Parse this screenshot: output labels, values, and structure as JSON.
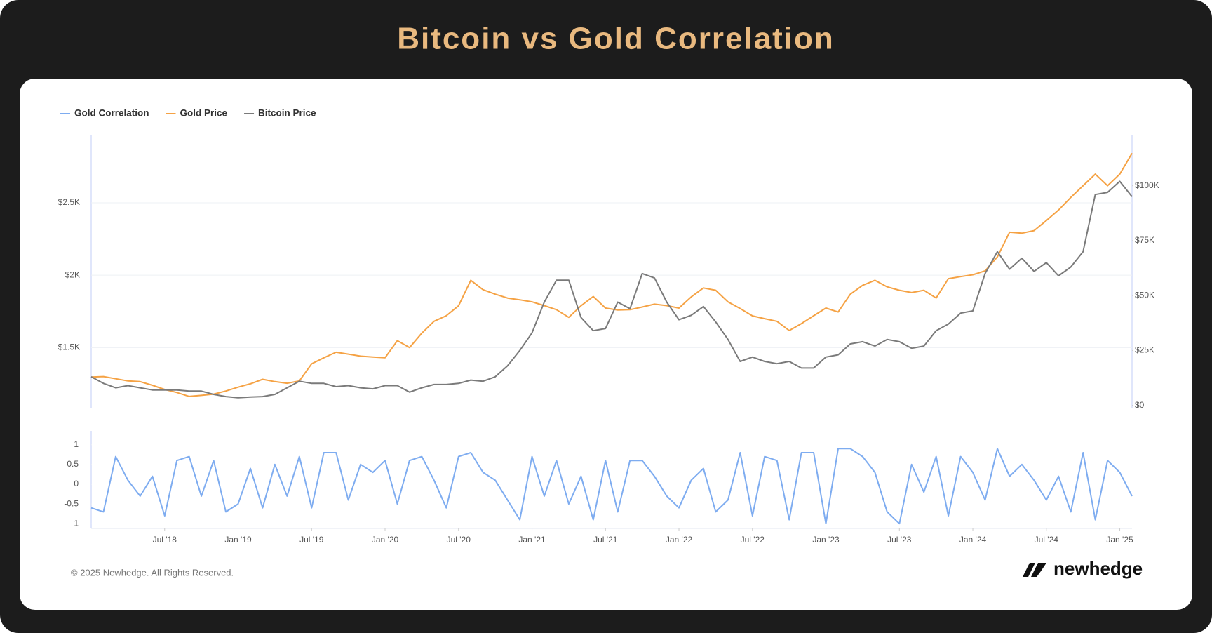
{
  "title": "Bitcoin vs Gold Correlation",
  "footer": {
    "copyright": "© 2025 Newhedge. All Rights Reserved.",
    "brand": "newhedge"
  },
  "chart_data": [
    {
      "type": "line",
      "x": [
        "2018-01",
        "2018-02",
        "2018-03",
        "2018-04",
        "2018-05",
        "2018-06",
        "2018-07",
        "2018-08",
        "2018-09",
        "2018-10",
        "2018-11",
        "2018-12",
        "2019-01",
        "2019-02",
        "2019-03",
        "2019-04",
        "2019-05",
        "2019-06",
        "2019-07",
        "2019-08",
        "2019-09",
        "2019-10",
        "2019-11",
        "2019-12",
        "2020-01",
        "2020-02",
        "2020-03",
        "2020-04",
        "2020-05",
        "2020-06",
        "2020-07",
        "2020-08",
        "2020-09",
        "2020-10",
        "2020-11",
        "2020-12",
        "2021-01",
        "2021-02",
        "2021-03",
        "2021-04",
        "2021-05",
        "2021-06",
        "2021-07",
        "2021-08",
        "2021-09",
        "2021-10",
        "2021-11",
        "2021-12",
        "2022-01",
        "2022-02",
        "2022-03",
        "2022-04",
        "2022-05",
        "2022-06",
        "2022-07",
        "2022-08",
        "2022-09",
        "2022-10",
        "2022-11",
        "2022-12",
        "2023-01",
        "2023-02",
        "2023-03",
        "2023-04",
        "2023-05",
        "2023-06",
        "2023-07",
        "2023-08",
        "2023-09",
        "2023-10",
        "2023-11",
        "2023-12",
        "2024-01",
        "2024-02",
        "2024-03",
        "2024-04",
        "2024-05",
        "2024-06",
        "2024-07",
        "2024-08",
        "2024-09",
        "2024-10",
        "2024-11",
        "2024-12",
        "2025-01",
        "2025-02"
      ],
      "xlim": [
        "2018-01",
        "2025-02"
      ],
      "ylim": [
        1080,
        2965
      ],
      "yticks": [
        {
          "value": 1500,
          "label": "$1.5K"
        },
        {
          "value": 2000,
          "label": "$2K"
        },
        {
          "value": 2500,
          "label": "$2.5K"
        }
      ],
      "y2lim": [
        -1400,
        122900
      ],
      "y2ticks": [
        {
          "value": 0,
          "label": "$0"
        },
        {
          "value": 25000,
          "label": "$25K"
        },
        {
          "value": 50000,
          "label": "$50K"
        },
        {
          "value": 75000,
          "label": "$75K"
        },
        {
          "value": 100000,
          "label": "$100K"
        }
      ],
      "grid": true,
      "series": [
        {
          "name": "Gold Price",
          "color": "#f5a244",
          "axis": "y",
          "values": [
            1297,
            1300,
            1285,
            1270,
            1265,
            1240,
            1211,
            1190,
            1163,
            1170,
            1179,
            1200,
            1227,
            1250,
            1281,
            1265,
            1254,
            1270,
            1388,
            1430,
            1468,
            1455,
            1441,
            1435,
            1430,
            1548,
            1500,
            1600,
            1682,
            1720,
            1789,
            1965,
            1900,
            1869,
            1842,
            1830,
            1816,
            1790,
            1762,
            1709,
            1789,
            1853,
            1773,
            1760,
            1762,
            1780,
            1800,
            1790,
            1773,
            1850,
            1912,
            1896,
            1816,
            1770,
            1719,
            1700,
            1682,
            1618,
            1666,
            1720,
            1773,
            1746,
            1869,
            1930,
            1965,
            1920,
            1896,
            1880,
            1896,
            1842,
            1976,
            1990,
            2003,
            2030,
            2126,
            2297,
            2290,
            2308,
            2377,
            2450,
            2537,
            2618,
            2698,
            2618,
            2698,
            2842
          ]
        },
        {
          "name": "Bitcoin Price",
          "color": "#7a7a7a",
          "axis": "y2",
          "values": [
            13000,
            10000,
            8000,
            9000,
            8000,
            7000,
            7000,
            7000,
            6500,
            6500,
            5000,
            4000,
            3500,
            3800,
            4000,
            5000,
            8000,
            11000,
            10000,
            10000,
            8500,
            9000,
            8000,
            7500,
            9000,
            9000,
            6000,
            8000,
            9500,
            9500,
            10000,
            11500,
            11000,
            13000,
            18000,
            25000,
            33000,
            47000,
            57000,
            57000,
            40000,
            34000,
            35000,
            47000,
            44000,
            60000,
            58000,
            47000,
            39000,
            41000,
            45000,
            38000,
            30000,
            20000,
            22000,
            20000,
            19000,
            20000,
            17000,
            17000,
            22000,
            23000,
            28000,
            29000,
            27000,
            30000,
            29000,
            26000,
            27000,
            34000,
            37000,
            42000,
            43000,
            60000,
            70000,
            62000,
            67000,
            61000,
            65000,
            59000,
            63000,
            70000,
            96000,
            97000,
            102000,
            95000
          ]
        }
      ]
    },
    {
      "type": "line",
      "x": [
        "2018-01",
        "2018-02",
        "2018-03",
        "2018-04",
        "2018-05",
        "2018-06",
        "2018-07",
        "2018-08",
        "2018-09",
        "2018-10",
        "2018-11",
        "2018-12",
        "2019-01",
        "2019-02",
        "2019-03",
        "2019-04",
        "2019-05",
        "2019-06",
        "2019-07",
        "2019-08",
        "2019-09",
        "2019-10",
        "2019-11",
        "2019-12",
        "2020-01",
        "2020-02",
        "2020-03",
        "2020-04",
        "2020-05",
        "2020-06",
        "2020-07",
        "2020-08",
        "2020-09",
        "2020-10",
        "2020-11",
        "2020-12",
        "2021-01",
        "2021-02",
        "2021-03",
        "2021-04",
        "2021-05",
        "2021-06",
        "2021-07",
        "2021-08",
        "2021-09",
        "2021-10",
        "2021-11",
        "2021-12",
        "2022-01",
        "2022-02",
        "2022-03",
        "2022-04",
        "2022-05",
        "2022-06",
        "2022-07",
        "2022-08",
        "2022-09",
        "2022-10",
        "2022-11",
        "2022-12",
        "2023-01",
        "2023-02",
        "2023-03",
        "2023-04",
        "2023-05",
        "2023-06",
        "2023-07",
        "2023-08",
        "2023-09",
        "2023-10",
        "2023-11",
        "2023-12",
        "2024-01",
        "2024-02",
        "2024-03",
        "2024-04",
        "2024-05",
        "2024-06",
        "2024-07",
        "2024-08",
        "2024-09",
        "2024-10",
        "2024-11",
        "2024-12",
        "2025-01",
        "2025-02"
      ],
      "xlim": [
        "2018-01",
        "2025-02"
      ],
      "xticks": [
        {
          "value": "2018-07",
          "label": "Jul '18"
        },
        {
          "value": "2019-01",
          "label": "Jan '19"
        },
        {
          "value": "2019-07",
          "label": "Jul '19"
        },
        {
          "value": "2020-01",
          "label": "Jan '20"
        },
        {
          "value": "2020-07",
          "label": "Jul '20"
        },
        {
          "value": "2021-01",
          "label": "Jan '21"
        },
        {
          "value": "2021-07",
          "label": "Jul '21"
        },
        {
          "value": "2022-01",
          "label": "Jan '22"
        },
        {
          "value": "2022-07",
          "label": "Jul '22"
        },
        {
          "value": "2023-01",
          "label": "Jan '23"
        },
        {
          "value": "2023-07",
          "label": "Jul '23"
        },
        {
          "value": "2024-01",
          "label": "Jan '24"
        },
        {
          "value": "2024-07",
          "label": "Jul '24"
        },
        {
          "value": "2025-01",
          "label": "Jan '25"
        }
      ],
      "ylim": [
        -1.12,
        1.35
      ],
      "yticks": [
        1,
        0.5,
        0,
        -0.5,
        -1
      ],
      "series": [
        {
          "name": "Gold Correlation",
          "color": "#7eacf0",
          "values": [
            -0.6,
            -0.7,
            0.7,
            0.1,
            -0.3,
            0.2,
            -0.8,
            0.6,
            0.7,
            -0.3,
            0.6,
            -0.7,
            -0.5,
            0.4,
            -0.6,
            0.5,
            -0.3,
            0.7,
            -0.6,
            0.8,
            0.8,
            -0.4,
            0.5,
            0.3,
            0.6,
            -0.5,
            0.6,
            0.7,
            0.1,
            -0.6,
            0.7,
            0.8,
            0.3,
            0.1,
            -0.4,
            -0.9,
            0.7,
            -0.3,
            0.6,
            -0.5,
            0.2,
            -0.9,
            0.6,
            -0.7,
            0.6,
            0.6,
            0.2,
            -0.3,
            -0.6,
            0.1,
            0.4,
            -0.7,
            -0.4,
            0.8,
            -0.8,
            0.7,
            0.6,
            -0.9,
            0.8,
            0.8,
            -1,
            0.9,
            0.9,
            0.7,
            0.3,
            -0.7,
            -1,
            0.5,
            -0.2,
            0.7,
            -0.8,
            0.7,
            0.3,
            -0.4,
            0.9,
            0.2,
            0.5,
            0.1,
            -0.4,
            0.2,
            -0.7,
            0.8,
            -0.9,
            0.6,
            0.3,
            -0.3
          ]
        }
      ]
    }
  ]
}
